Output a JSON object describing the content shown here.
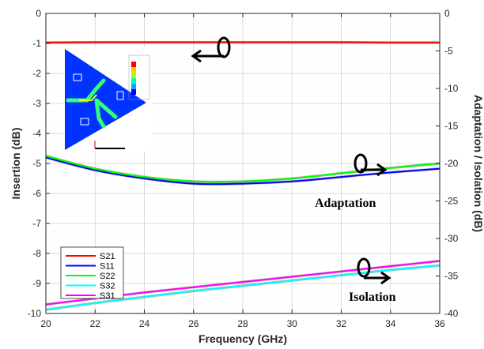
{
  "chart_data": {
    "type": "line",
    "xlabel": "Frequency (GHz)",
    "ylabel_left": "Insertion (dB)",
    "ylabel_right": "Adaptation / Isolation (dB)",
    "xlim": [
      20,
      36
    ],
    "ylim_left": [
      -10,
      0
    ],
    "ylim_right": [
      -40,
      0
    ],
    "xticks": [
      20,
      22,
      24,
      26,
      28,
      30,
      32,
      34,
      36
    ],
    "yticks_left": [
      0,
      -1,
      -2,
      -3,
      -4,
      -5,
      -6,
      -7,
      -8,
      -9,
      -10
    ],
    "yticks_right": [
      0,
      -5,
      -10,
      -15,
      -20,
      -25,
      -30,
      -35,
      -40
    ],
    "grid": true,
    "legend_position": "bottom-left",
    "x": [
      20,
      22,
      24,
      26,
      28,
      30,
      32,
      34,
      36
    ],
    "series": [
      {
        "name": "S21",
        "axis": "left",
        "color": "#ff0000",
        "values": [
          -0.97,
          -0.96,
          -0.96,
          -0.96,
          -0.96,
          -0.96,
          -0.96,
          -0.97,
          -0.97
        ]
      },
      {
        "name": "S11",
        "axis": "right",
        "color": "#0000ff",
        "values": [
          -19.2,
          -20.9,
          -22.0,
          -22.7,
          -22.7,
          -22.4,
          -21.8,
          -21.2,
          -20.7
        ]
      },
      {
        "name": "S22",
        "axis": "right",
        "color": "#00ff00",
        "values": [
          -19.0,
          -20.7,
          -21.8,
          -22.4,
          -22.4,
          -22.0,
          -21.3,
          -20.6,
          -20.0
        ]
      },
      {
        "name": "S32",
        "axis": "right",
        "color": "#00ffff",
        "values": [
          -39.5,
          -38.6,
          -37.8,
          -37.0,
          -36.3,
          -35.6,
          -34.9,
          -34.2,
          -33.6
        ]
      },
      {
        "name": "S31",
        "axis": "right",
        "color": "#ff00ff",
        "values": [
          -38.8,
          -38.0,
          -37.2,
          -36.5,
          -35.8,
          -35.1,
          -34.4,
          -33.7,
          -33.0
        ]
      }
    ],
    "annotations": [
      "Adaptation",
      "Isolation"
    ]
  },
  "inset": {
    "colorbar_colors": [
      "#0000ff",
      "#00aaff",
      "#00ffaa",
      "#aaff00",
      "#ffcc00",
      "#ff0000"
    ],
    "background": "#0033ff"
  }
}
